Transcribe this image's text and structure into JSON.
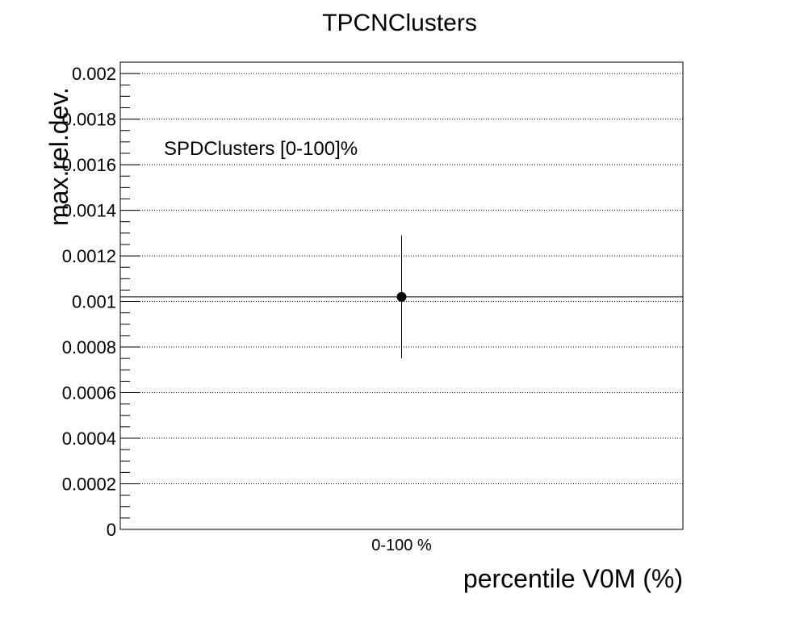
{
  "chart_data": {
    "type": "scatter",
    "title": "TPCNClusters",
    "xlabel": "percentile V0M (%)",
    "ylabel": "max.rel.dev.",
    "annotation": "SPDClusters [0-100]%",
    "categories": [
      "0-100 %"
    ],
    "ylim": [
      0,
      0.00205
    ],
    "yticks": [
      "0",
      "0.0002",
      "0.0004",
      "0.0006",
      "0.0008",
      "0.001",
      "0.0012",
      "0.0014",
      "0.0016",
      "0.0018",
      "0.002"
    ],
    "ytick_values": [
      0,
      0.0002,
      0.0004,
      0.0006,
      0.0008,
      0.001,
      0.0012,
      0.0014,
      0.0016,
      0.0018,
      0.002
    ],
    "grid": true,
    "reference_line": 0.00102,
    "points": [
      {
        "category": "0-100 %",
        "y": 0.00102,
        "y_low": 0.00075,
        "y_high": 0.00129
      }
    ]
  }
}
